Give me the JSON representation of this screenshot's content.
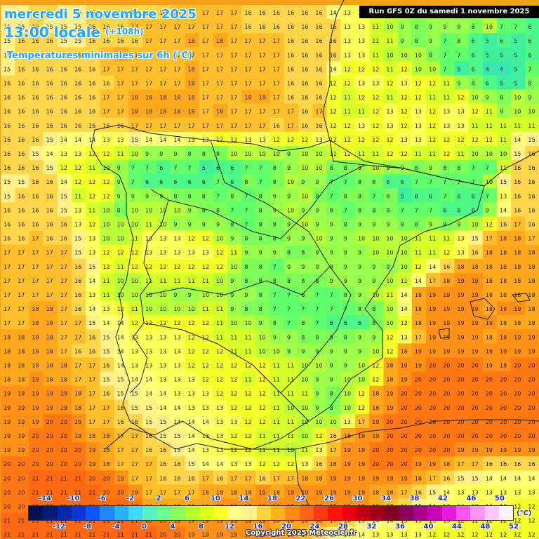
{
  "header": {
    "date": "mercredi 5 novembre 2025",
    "time": "13:00 locale",
    "lead": "(+108h)",
    "parameter": "Températures minimales sur 6h (°C)"
  },
  "run_banner": "Run GFS 0Z du samedi 1 novembre 2025",
  "legend": {
    "unit": "(°C)",
    "top_labels": [
      "-14",
      "-10",
      "-6",
      "-2",
      "2",
      "6",
      "10",
      "14",
      "18",
      "22",
      "26",
      "30",
      "34",
      "38",
      "42",
      "46",
      "50"
    ],
    "bottom_labels": [
      "-12",
      "-8",
      "-4",
      "0",
      "4",
      "8",
      "12",
      "16",
      "20",
      "24",
      "28",
      "32",
      "36",
      "40",
      "44",
      "48",
      "52"
    ],
    "colors": [
      "#02124f",
      "#031b7a",
      "#0529a8",
      "#0a36d8",
      "#0a56ff",
      "#1f86ff",
      "#27b4ff",
      "#3fd8ff",
      "#56f2c4",
      "#6bff8c",
      "#8aff5a",
      "#b6ff2c",
      "#e0ff1a",
      "#ffff2a",
      "#ffff8c",
      "#fff38a",
      "#ffd33a",
      "#ffb11f",
      "#ff8a18",
      "#ff6414",
      "#ff3a10",
      "#ff140c",
      "#e8000a",
      "#c00010",
      "#a0001a",
      "#800020",
      "#8c0060",
      "#a8008c",
      "#c800b8",
      "#e61ae0",
      "#ff55f0",
      "#ff96f8",
      "#ffc8fc",
      "#fff0ff"
    ]
  },
  "map_labels": {
    "colors": {
      "10": "#b8ff3a",
      "9": "#9aff4a",
      "8": "#7dff5a",
      "7": "#60ff6c",
      "6": "#4cf887",
      "5": "#3fef9c",
      "11": "#d6ff2a",
      "12": "#f4ff2a",
      "13": "#ffff5a",
      "14": "#ffff7a",
      "15": "#fff08a",
      "16": "#ffd54a",
      "17": "#ffbf2a",
      "18": "#ffa81e",
      "19": "#ff9018",
      "20": "#ff7814",
      "21": "#ff6812",
      "22": "#ff5a10",
      "4": "#38e8b0"
    }
  },
  "grid_rows": [
    "15 15 16 16 15 15 16 16 16 16 16 16 17 17 17 17 17 16 16 16 16 16 16 14 13 13 11 11 10 9 9 9 8 9 10 7 7 6",
    "15 15 16 15 15 15 16 16 16 17 17 17 17 17 17 17 17 16 16 16 16 16 16 16 13 13 11 10 9 8 9 9 9 8 10 7 7 6",
    "15 16 16 16 15 15 16 16 16 16 17 17 17 18 17 18 17 17 17 17 16 16 16 16 13 13 11 11 9 8 9 7 8 6 5 6 5 6",
    "15 16 16 16 16 16 16 17 18 17 17 17 17 17 17 17 17 17 17 17 16 16 16 16 13 13 11 10 10 10 8 7 7 6 5 5 5 6",
    "15 16 16 16 16 16 16 17 17 17 17 17 17 18 17 17 17 17 17 17 16 16 16 14 12 12 12 11 12 10 10 7 5 6 4 4 5 7",
    "16 16 16 16 16 16 16 16 17 17 17 17 17 18 17 17 17 17 17 17 16 16 16 12 12 13 13 12 13 12 12 11 9 8 6 5 5 8",
    "16 16 16 16 16 16 16 17 17 18 18 18 18 18 17 17 17 18 18 17 16 16 16 12 11 12 12 11 12 12 11 11 12 10 9 8 10 9",
    "16 16 16 16 16 16 16 17 17 18 18 18 18 18 17 18 17 17 17 17 17 16 17 12 11 11 12 13 12 13 12 13 13 12 11 9 10 10",
    "16 16 16 16 16 16 16 16 16 17 17 17 17 17 17 17 17 17 17 16 17 16 16 12 12 13 12 13 12 13 12 13 13 11 11 11 11 11",
    "16 16 16 15 14 14 14 13 13 15 14 14 14 13 13 12 12 13 13 12 12 12 13 12 12 12 12 12 13 13 12 12 12 12 12 11 14 15",
    "16 16 15 14 13 13 12 12 11 10 9 9 9 8 8 8 10 10 10 10 9 10 10 11 12 11 11 12 12 11 11 12 11 10 10 10 15 16",
    "16 16 16 15 12 12 11 10 9 7 7 6 7 7 5 6 6 7 7 8 9 10 10 8 8 9 10 9 9 8 9 8 8 7 7 11 16 16",
    "15 15 16 16 14 12 12 12 9 7 6 6 6 6 6 7 6 8 7 8 10 9 9 7 7 8 8 6 6 7 7 7 7 7 10 15 16 16",
    "15 16 16 16 15 11 12 12 9 9 9 9 8 8 8 7 8 7 8 9 9 10 8 7 8 8 7 8 5 6 6 7 6 6 7 13 16 16",
    "16 16 16 16 15 13 11 10 8 10 10 10 10 9 8 8 7 7 8 9 10 9 9 8 7 8 8 8 7 7 7 6 6 6 9 14 16 16",
    "16 16 16 16 16 13 12 10 10 10 11 10 9 9 9 9 8 7 8 8 9 10 9 9 8 9 9 9 8 8 9 8 9 10 12 16 17 16",
    "16 16 17 16 16 15 13 10 10 11 13 13 13 12 12 10 9 8 8 8 9 9 10 9 9 10 10 10 10 11 11 11 13 15 17 18 18 17",
    "17 17 17 17 17 15 13 12 12 12 13 13 13 13 13 12 11 9 9 9 8 8 9 9 9 9 10 10 10 11 11 12 13 16 18 18 18 18",
    "17 17 17 17 17 16 15 12 11 12 12 12 12 12 12 12 10 8 8 7 9 9 9 9 9 9 9 9 10 12 14 16 18 18 18 18 18 18",
    "17 17 17 17 17 16 14 11 10 10 11 11 11 11 11 10 9 8 8 8 8 8 8 9 9 9 9 10 11 14 17 18 19 19 18 18 18 18",
    "17 17 17 17 17 16 13 11 10 10 10 10 9 9 10 10 9 9 8 7 7 8 7 7 8 9 10 11 14 18 19 19 19 19 18 18 18 18",
    "17 17 18 18 17 16 14 13 12 11 10 10 10 10 11 11 9 8 8 7 7 7 7 7 7 8 8 10 14 18 19 19 19 19 18 19 19 18",
    "17 17 18 18 17 17 15 14 14 12 12 12 12 12 12 11 10 10 9 8 7 8 7 6 6 6 8 10 12 18 19 19 19 19 19 18 18 18",
    "18 18 18 18 17 17 16 15 14 13 13 13 13 12 12 11 11 11 10 9 9 8 8 8 8 9 9 12 13 17 19 19 19 19 18 19 19 19",
    "18 18 18 18 17 16 16 15 14 13 13 13 13 12 12 12 11 11 10 10 9 9 9 9 9 9 10 12 18 19 19 19 19 19 19 19 19 19",
    "18 18 18 18 18 17 17 16 14 13 13 13 13 12 12 12 12 12 12 11 11 10 10 9 9 10 12 18 19 19 20 20 20 20 19 19 20 20",
    "18 18 19 18 18 17 17 15 15 14 14 13 13 13 12 12 12 11 12 11 11 10 9 9 10 10 12 18 19 20 20 20 20 20 20 20 20 20",
    "19 19 19 19 19 18 17 16 15 15 14 14 13 13 13 12 12 12 12 11 11 11 9 8 10 12 18 19 20 20 20 20 20 20 20 20 20 20",
    "19 19 19 19 19 18 17 17 16 15 15 14 14 13 13 13 12 12 12 11 10 10 9 8 10 12 18 19 20 20 20 20 20 20 20 20 20 20",
    "19 19 19 20 20 19 17 17 16 16 15 15 14 14 14 13 13 12 12 11 11 10 10 10 13 17 19 20 20 20 20 20 20 20 20 20 20 20",
    "19 19 20 20 20 19 18 18 17 17 16 15 15 14 13 13 12 12 11 11 11 10 12 16 18 19 19 20 20 20 20 20 20 20 20 20 20 20",
    "19 19 20 20 20 20 19 18 17 17 16 16 15 14 13 13 12 12 11 11 10 11 13 17 19 19 20 20 20 20 20 20 19 19 19 19 19 19",
    "20 20 20 20 20 20 19 18 17 17 17 16 16 15 14 14 13 13 12 12 12 13 16 18 19 19 20 20 20 19 19 18 17 17 16 16 16 16",
    "20 20 21 21 21 21 20 20 19 17 17 16 16 16 17 16 17 17 16 17 17 18 18 19 19 19 19 19 19 18 17 16 15 15 14 14 14 14",
    "20 20 21 21 21 21 21 20 20 19 17 17 17 17 18 18 18 18 19 18 19 19 19 19 19 19 18 18 17 16 15 14 13 13 13 13 13 13",
    "20 20 21 21 21 21 21 21 21 20 18 18 18 18 18 19 19 19 19 19 19 19 19 19 19 19 18 17 16 15 14 13 13 13 13 13 12 12",
    "21 21 21 21 21 21 21 21 21 21 20 20 19 19 19 19 19 19 19 18 18 18 18 17 16 15 14 14 13 13 13 13 12 12 12 12 12 12",
    "21 21 21 21 21 21 21 21 21 21 21 20 20 19 19 19 19 19 19 18 18 17 16 15 14 14 13 13 13 13 12 12 12 12 12 12 12 12",
    "21 21 21 21 21 21 21 21 21 21 21 21 20 20 20 20 19 19 19 18 17 16 15 15 14 14 14 13 13 13 12 12 12 12 12 12 12 12"
  ],
  "copyright": "Copyright 2025 Meteociel.fr"
}
